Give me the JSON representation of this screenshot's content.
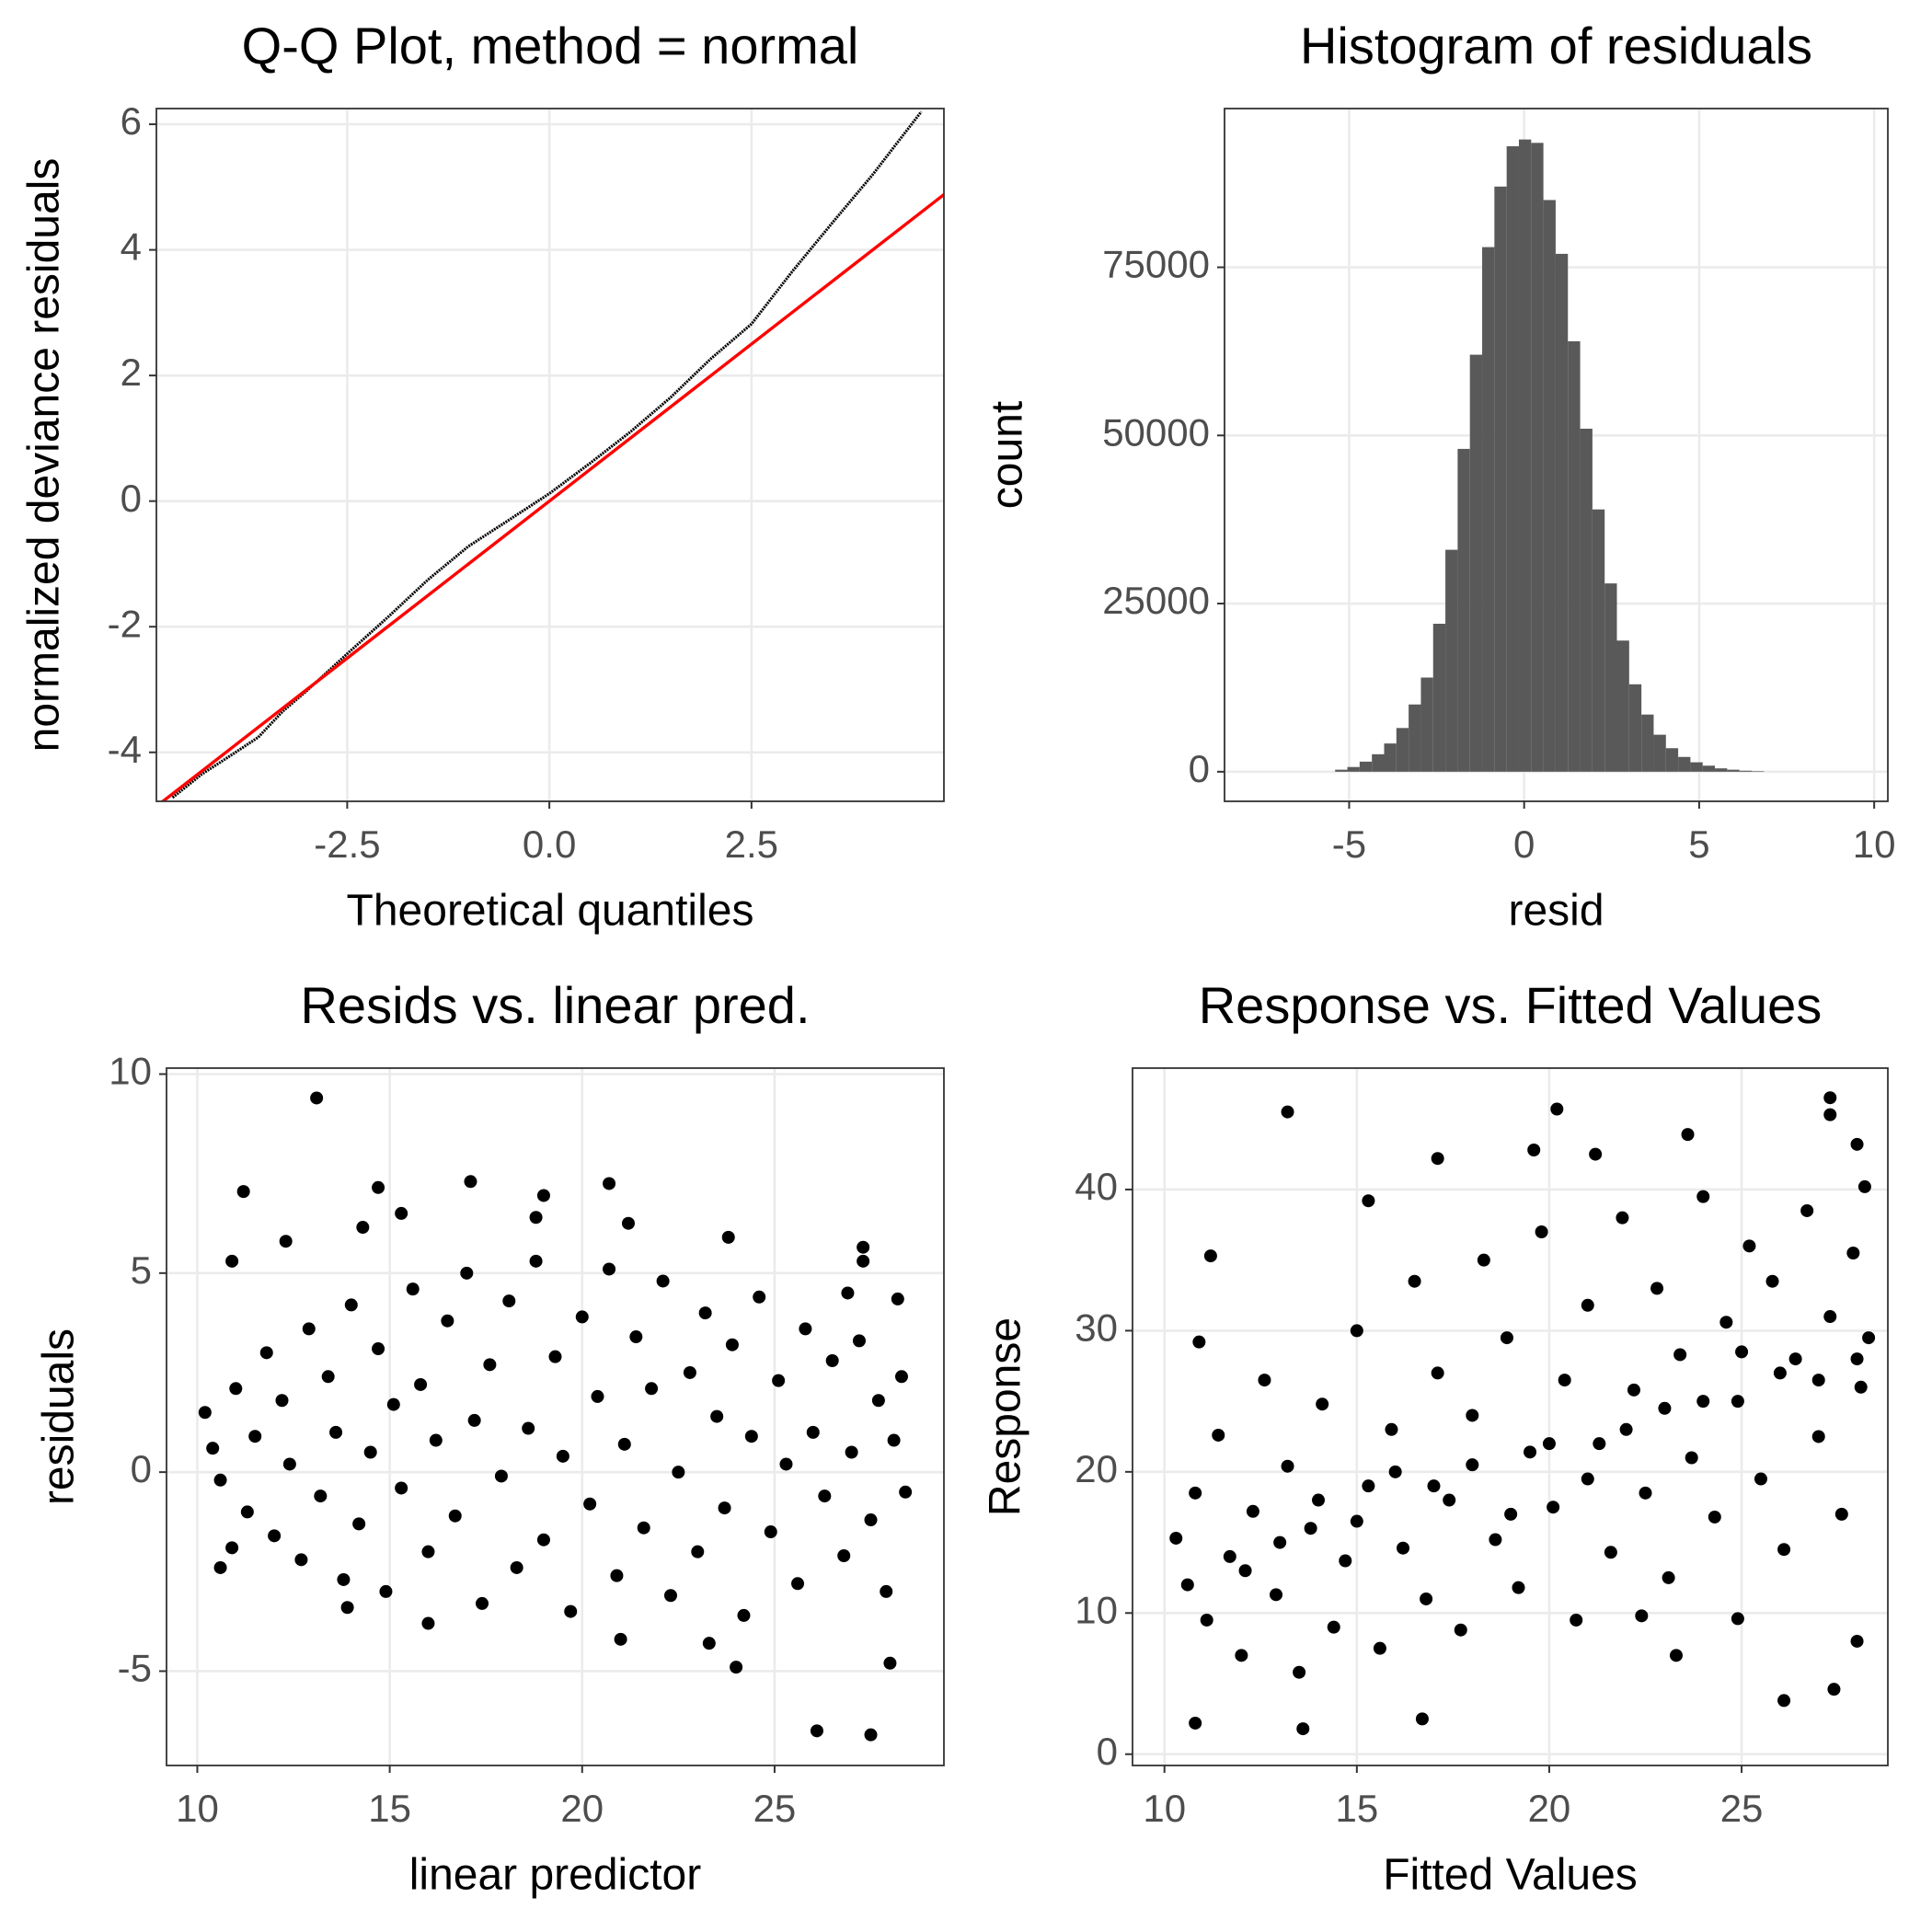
{
  "chart_data": [
    {
      "type": "qq",
      "title": "Q-Q Plot, method = normal",
      "x_label": "Theoretical quantiles",
      "y_label": "normalized deviance residuals",
      "xlim": [
        -4.86,
        4.88
      ],
      "ylim": [
        -4.78,
        6.25
      ],
      "xticks": [
        -2.5,
        {
          "value": 0,
          "label": "0.0"
        },
        2.5
      ],
      "yticks": [
        -4,
        -2,
        0,
        2,
        4,
        6
      ],
      "grid": true,
      "points": {
        "color": "#000000",
        "x": [
          -4.66,
          -4.3,
          -4.0,
          -3.6,
          -3.3,
          -3.0,
          -2.5,
          -2.0,
          -1.5,
          -1.0,
          -0.5,
          0,
          0.5,
          1.0,
          1.5,
          2.0,
          2.5,
          3.0,
          3.5,
          4.0,
          4.3,
          4.6
        ],
        "values": [
          -4.72,
          -4.35,
          -4.1,
          -3.76,
          -3.35,
          -3.02,
          -2.43,
          -1.85,
          -1.25,
          -0.72,
          -0.3,
          0.12,
          0.6,
          1.1,
          1.65,
          2.27,
          2.82,
          3.65,
          4.43,
          5.2,
          5.7,
          6.2
        ]
      },
      "reference_line": {
        "color": "#ff0000",
        "x": [
          -4.86,
          4.88
        ],
        "values": [
          -4.86,
          4.88
        ]
      }
    },
    {
      "type": "histogram",
      "title": "Histogram of residuals",
      "x_label": "resid",
      "y_label": "count",
      "xlim": [
        -8.56,
        10.39
      ],
      "ylim": [
        -4400,
        98600
      ],
      "xticks": [
        -5,
        0,
        5,
        10
      ],
      "yticks": [
        0,
        25000,
        50000,
        75000
      ],
      "grid": true,
      "color": "#595959",
      "bins": [
        -5.4,
        -5.05,
        -4.7,
        -4.35,
        -4.0,
        -3.65,
        -3.3,
        -2.95,
        -2.6,
        -2.25,
        -1.9,
        -1.55,
        -1.2,
        -0.85,
        -0.5,
        -0.15,
        0.2,
        0.55,
        0.9,
        1.25,
        1.6,
        1.95,
        2.3,
        2.65,
        3.0,
        3.35,
        3.7,
        4.05,
        4.4,
        4.75,
        5.1,
        5.45,
        5.8,
        6.15,
        6.5,
        6.85
      ],
      "values": [
        300,
        700,
        1500,
        2600,
        4200,
        6500,
        10000,
        14000,
        22000,
        33000,
        48000,
        62000,
        78000,
        87000,
        93000,
        94000,
        93500,
        85000,
        77000,
        64000,
        51000,
        39000,
        28000,
        19500,
        13000,
        8500,
        5500,
        3500,
        2200,
        1400,
        900,
        500,
        300,
        150,
        80
      ]
    },
    {
      "type": "scatter",
      "title": "Resids vs. linear pred.",
      "x_label": "linear predictor",
      "y_label": "residuals",
      "xlim": [
        9.2,
        29.4
      ],
      "ylim": [
        -7.37,
        10.15
      ],
      "xticks": [
        10,
        15,
        20,
        25
      ],
      "yticks": [
        -5,
        0,
        5,
        10
      ],
      "grid": true,
      "color": "#000000",
      "x": [
        13.1,
        11.2,
        14.7,
        17.1,
        20.7,
        19.0,
        18.8,
        21.2,
        15.3,
        14.3,
        12.3,
        10.9,
        23.8,
        27.3,
        27.3,
        26.9,
        28.2,
        26.1,
        27.5,
        24.0,
        21.0,
        10.6,
        10.9,
        28.0,
        23.3,
        13.9,
        16.0,
        10.2,
        10.4,
        10.6,
        11.0,
        11.3,
        11.5,
        11.8,
        12.0,
        12.2,
        12.4,
        12.7,
        12.9,
        13.2,
        13.4,
        13.6,
        13.8,
        14.0,
        14.2,
        14.5,
        14.7,
        14.9,
        15.1,
        15.3,
        15.6,
        15.8,
        16.0,
        16.2,
        16.5,
        16.7,
        17.0,
        17.2,
        17.4,
        17.6,
        17.9,
        18.1,
        18.3,
        18.6,
        18.8,
        19.0,
        19.3,
        19.5,
        19.7,
        20.0,
        20.2,
        20.4,
        20.7,
        20.9,
        21.1,
        21.4,
        21.6,
        21.8,
        22.1,
        22.3,
        22.5,
        22.8,
        23.0,
        23.2,
        23.5,
        23.7,
        23.9,
        24.2,
        24.4,
        24.6,
        24.9,
        25.1,
        25.3,
        25.6,
        25.8,
        26.0,
        26.3,
        26.5,
        26.8,
        27.0,
        27.2,
        27.5,
        27.7,
        27.9,
        28.1,
        28.3,
        28.4
      ],
      "values": [
        9.4,
        7.05,
        7.15,
        7.3,
        7.25,
        6.95,
        6.4,
        6.25,
        6.5,
        6.15,
        5.8,
        5.3,
        5.9,
        5.65,
        5.3,
        4.5,
        4.35,
        -6.5,
        -6.6,
        -4.9,
        -4.2,
        -2.4,
        -1.9,
        -4.8,
        -4.3,
        -3.4,
        -3.8,
        1.5,
        0.6,
        -0.2,
        2.1,
        -1.0,
        0.9,
        3.0,
        -1.6,
        1.8,
        0.2,
        -2.2,
        3.6,
        -0.6,
        2.4,
        1.0,
        -2.7,
        4.2,
        -1.3,
        0.5,
        3.1,
        -3.0,
        1.7,
        -0.4,
        4.6,
        2.2,
        -2.0,
        0.8,
        3.8,
        -1.1,
        5.0,
        1.3,
        -3.3,
        2.7,
        -0.1,
        4.3,
        -2.4,
        1.1,
        5.3,
        -1.7,
        2.9,
        0.4,
        -3.5,
        3.9,
        -0.8,
        1.9,
        5.1,
        -2.6,
        0.7,
        3.4,
        -1.4,
        2.1,
        4.8,
        -3.1,
        0.0,
        2.5,
        -2.0,
        4.0,
        1.4,
        -0.9,
        3.2,
        -3.6,
        0.9,
        4.4,
        -1.5,
        2.3,
        0.2,
        -2.8,
        3.6,
        1.0,
        -0.6,
        2.8,
        -2.1,
        0.5,
        3.3,
        -1.2,
        1.8,
        -3.0,
        0.8,
        2.4,
        -0.5
      ]
    },
    {
      "type": "scatter",
      "title": "Response vs. Fitted Values",
      "x_label": "Fitted Values",
      "y_label": "Response",
      "xlim": [
        9.17,
        28.8
      ],
      "ylim": [
        -0.8,
        48.6
      ],
      "xticks": [
        10,
        15,
        20,
        25
      ],
      "yticks": [
        0,
        10,
        20,
        30,
        40
      ],
      "grid": true,
      "color": "#000000",
      "x": [
        13.2,
        20.2,
        27.3,
        27.3,
        21.2,
        17.1,
        19.6,
        23.6,
        11.2,
        10.9,
        10.8,
        13.6,
        26.1,
        27.4,
        16.7,
        15.3,
        28.0,
        22.4,
        24.9,
        23.3,
        28.0,
        10.3,
        10.6,
        10.8,
        11.1,
        11.4,
        11.7,
        12.0,
        12.3,
        12.6,
        12.9,
        13.2,
        13.5,
        13.8,
        14.1,
        14.4,
        14.7,
        15.0,
        15.3,
        15.6,
        15.9,
        16.2,
        16.5,
        16.8,
        17.1,
        17.4,
        17.7,
        18.0,
        18.3,
        18.6,
        18.9,
        19.2,
        19.5,
        19.8,
        20.1,
        20.4,
        20.7,
        21.0,
        21.3,
        21.6,
        21.9,
        22.2,
        22.5,
        22.8,
        23.1,
        23.4,
        23.7,
        24.0,
        24.3,
        24.6,
        24.9,
        25.2,
        25.5,
        25.8,
        26.1,
        26.4,
        26.7,
        27.0,
        27.3,
        27.6,
        27.9,
        28.1,
        28.3,
        28.2,
        12.1,
        14.0,
        16.0,
        18.0,
        20.0,
        22.0,
        24.0,
        26.0,
        28.0,
        13.0,
        15.0,
        17.0,
        19.0,
        21.0,
        23.0,
        25.0,
        27.0
      ],
      "values": [
        45.5,
        45.7,
        46.5,
        45.3,
        42.5,
        42.2,
        42.8,
        43.9,
        35.3,
        29.2,
        2.2,
        1.8,
        3.8,
        4.6,
        2.5,
        39.2,
        43.2,
        9.8,
        9.6,
        7.0,
        8.0,
        15.3,
        12.0,
        18.5,
        9.5,
        22.6,
        14.0,
        7.0,
        17.2,
        26.5,
        11.3,
        20.4,
        5.8,
        16.0,
        24.8,
        9.0,
        13.7,
        30.0,
        19.0,
        7.5,
        23.0,
        14.6,
        33.5,
        11.0,
        27.0,
        18.0,
        8.8,
        24.0,
        35.0,
        15.2,
        29.5,
        11.8,
        21.4,
        37.0,
        17.5,
        26.5,
        9.5,
        31.8,
        22.0,
        14.3,
        38.0,
        25.8,
        18.5,
        33.0,
        12.5,
        28.3,
        21.0,
        39.5,
        16.8,
        30.6,
        25.0,
        36.0,
        19.5,
        33.5,
        14.5,
        28.0,
        38.5,
        22.5,
        31.0,
        17.0,
        35.5,
        26.0,
        29.5,
        40.2,
        13.0,
        18.0,
        20.0,
        20.5,
        22.0,
        23.0,
        25.0,
        27.0,
        28.0,
        15.0,
        16.5,
        19.0,
        17.0,
        19.5,
        24.5,
        28.5,
        26.5
      ]
    }
  ]
}
